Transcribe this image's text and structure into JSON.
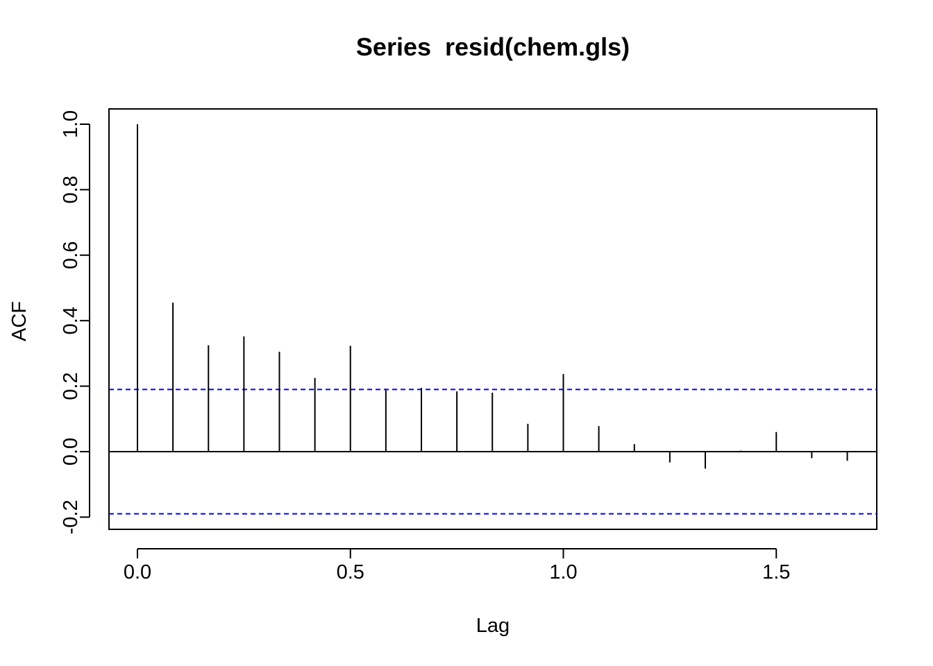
{
  "chart_data": {
    "type": "bar",
    "title": "Series  resid(chem.gls)",
    "xlabel": "Lag",
    "ylabel": "ACF",
    "xlim": [
      -0.0667,
      1.75
    ],
    "ylim": [
      -0.24,
      1.05
    ],
    "xticks": [
      0.0,
      0.5,
      1.0,
      1.5
    ],
    "xtick_labels": [
      "0.0",
      "0.5",
      "1.0",
      "1.5"
    ],
    "yticks": [
      -0.2,
      0.0,
      0.2,
      0.4,
      0.6,
      0.8,
      1.0
    ],
    "ytick_labels": [
      "-0.2",
      "0.0",
      "0.2",
      "0.4",
      "0.6",
      "0.8",
      "1.0"
    ],
    "lags": [
      0.0,
      0.0833,
      0.1667,
      0.25,
      0.3333,
      0.4167,
      0.5,
      0.5833,
      0.6667,
      0.75,
      0.8333,
      0.9167,
      1.0,
      1.0833,
      1.1667,
      1.25,
      1.3333,
      1.4167,
      1.5,
      1.5833,
      1.6667
    ],
    "acf": [
      1.0,
      0.455,
      0.325,
      0.352,
      0.305,
      0.225,
      0.323,
      0.188,
      0.195,
      0.184,
      0.18,
      0.085,
      0.237,
      0.078,
      0.023,
      -0.033,
      -0.052,
      0.003,
      0.06,
      -0.02,
      -0.028
    ],
    "confidence_bounds": [
      0.19,
      -0.19
    ],
    "confidence_color": "#0000ff",
    "grid": false,
    "legend": "none"
  }
}
